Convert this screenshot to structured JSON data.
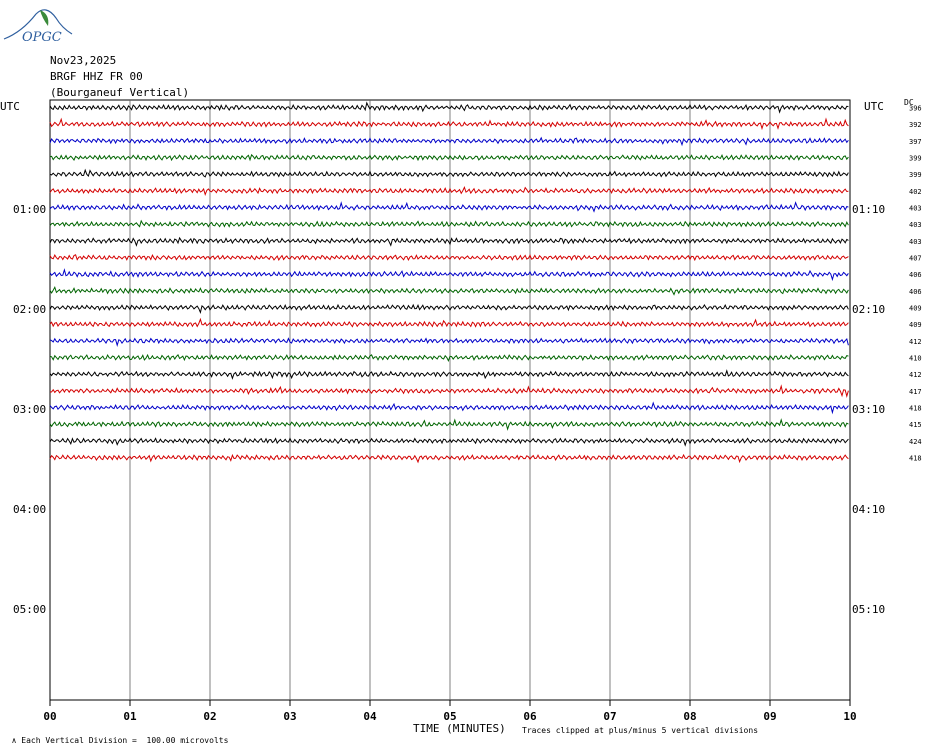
{
  "logo": {
    "text": "OPGC"
  },
  "header": {
    "date": "Nov23,2025",
    "station": "BRGF HHZ FR 00",
    "location": "(Bourganeuf Vertical)"
  },
  "left_axis": {
    "title": "UTC",
    "hour_labels": [
      "01:00",
      "02:00",
      "03:00",
      "04:00",
      "05:00"
    ]
  },
  "right_axis": {
    "title": "UTC",
    "hour_labels": [
      "01:10",
      "02:10",
      "03:10",
      "04:10",
      "05:10"
    ],
    "dc_label": "DC"
  },
  "footer": {
    "xlabel": "TIME (MINUTES)",
    "scale_note": "Each Vertical Division =  100.00 microvolts",
    "clip_note": "Traces clipped at plus/minus 5 vertical divisions"
  },
  "colors": {
    "trace_cycle": [
      "#000000",
      "#d40000",
      "#0000c8",
      "#006400"
    ],
    "grid": "#606060",
    "logo": "#2f5f9f",
    "logo_leaf": "#3a8a3a"
  },
  "chart_data": {
    "type": "line",
    "title": "",
    "xlabel": "TIME (MINUTES)",
    "x_ticks": [
      "00",
      "01",
      "02",
      "03",
      "04",
      "05",
      "06",
      "07",
      "08",
      "09",
      "10"
    ],
    "xlim": [
      0,
      10
    ],
    "row_interval_minutes": 10,
    "total_rows": 36,
    "traces_shown": 22,
    "dc_offsets": [
      396,
      392,
      397,
      399,
      399,
      402,
      403,
      403,
      403,
      407,
      406,
      406,
      409,
      409,
      412,
      410,
      412,
      417,
      418,
      415,
      424,
      418
    ]
  }
}
